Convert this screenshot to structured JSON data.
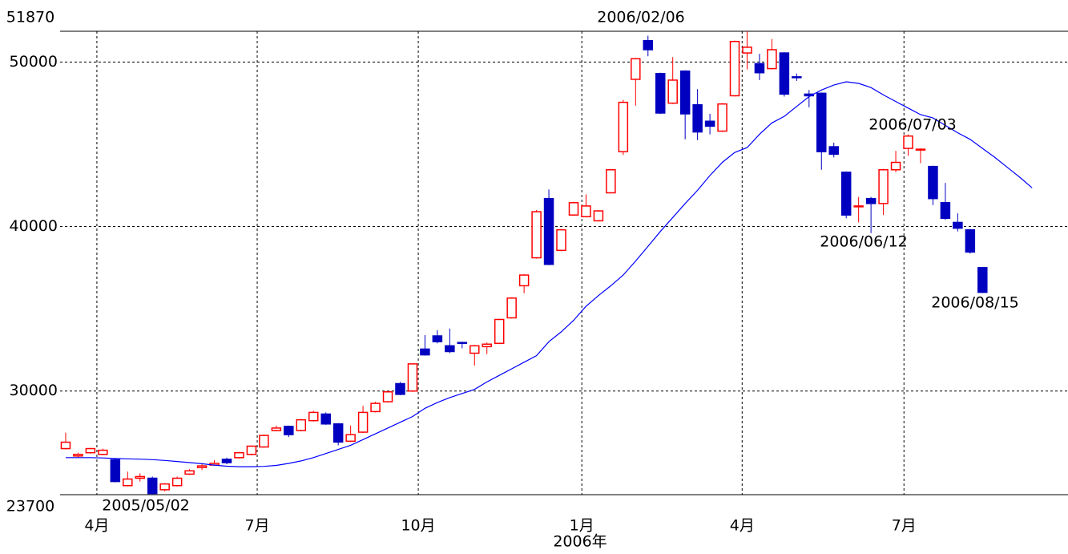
{
  "chart_data": {
    "type": "candlestick",
    "categories": [
      null,
      null,
      null,
      null,
      null,
      null,
      null,
      null,
      null,
      null,
      null,
      null,
      null,
      null,
      null,
      null,
      null,
      null,
      null,
      null,
      null,
      null,
      null,
      null,
      null,
      null,
      null,
      null,
      null,
      null,
      null,
      null,
      null,
      null,
      null,
      null,
      null,
      null,
      null,
      null,
      null,
      null,
      null,
      null,
      null,
      null,
      null,
      null,
      null,
      null,
      null,
      null,
      null,
      null,
      null,
      null,
      null,
      null,
      null,
      null,
      null,
      null,
      null,
      null,
      null,
      null,
      null,
      null,
      null,
      null,
      null,
      null,
      null,
      null,
      null
    ],
    "open": [
      26500,
      26050,
      26250,
      26150,
      25820,
      24250,
      24700,
      24700,
      24000,
      24250,
      24950,
      25350,
      25500,
      25850,
      25950,
      26150,
      26600,
      27600,
      27850,
      27600,
      28200,
      28600,
      28000,
      26950,
      27500,
      28750,
      29350,
      30450,
      30000,
      32550,
      33350,
      32750,
      32950,
      32300,
      32700,
      32900,
      34450,
      36400,
      38100,
      41700,
      38550,
      40700,
      40600,
      40350,
      42050,
      44550,
      48950,
      51300,
      49300,
      47500,
      49450,
      47400,
      46400,
      45800,
      47950,
      50550,
      49900,
      49600,
      50550,
      49100,
      48050,
      48100,
      44850,
      43300,
      41200,
      41700,
      41400,
      43450,
      44750,
      44650,
      43650,
      41450,
      40250,
      39800,
      37500
    ],
    "high": [
      27470,
      26250,
      26550,
      26500,
      25900,
      25100,
      25000,
      24800,
      24400,
      24800,
      25250,
      25600,
      25800,
      25950,
      26300,
      26700,
      27350,
      27900,
      27900,
      28300,
      28800,
      28700,
      28050,
      27900,
      29100,
      29350,
      30000,
      30550,
      31700,
      33400,
      33700,
      33800,
      33000,
      32800,
      32950,
      34400,
      35700,
      37100,
      41000,
      42250,
      39850,
      41500,
      41950,
      41000,
      43500,
      47700,
      50250,
      51600,
      49350,
      50300,
      49500,
      48350,
      46850,
      47500,
      51300,
      51870,
      50500,
      51400,
      50600,
      49300,
      48300,
      48150,
      45100,
      43350,
      41800,
      41800,
      43500,
      44600,
      45600,
      44750,
      43700,
      42650,
      40800,
      39850,
      37550
    ],
    "low": [
      26450,
      25950,
      26200,
      26100,
      24450,
      24200,
      24500,
      23700,
      23900,
      24200,
      24900,
      25200,
      25450,
      25550,
      25900,
      26100,
      26550,
      27550,
      27200,
      27550,
      28150,
      27950,
      26700,
      26900,
      27450,
      28700,
      29300,
      29750,
      29950,
      32150,
      32900,
      32300,
      32600,
      31550,
      32250,
      32850,
      34400,
      35950,
      38050,
      37650,
      38500,
      40650,
      40550,
      40300,
      42000,
      44350,
      47350,
      50350,
      46850,
      47450,
      45300,
      45250,
      45600,
      45750,
      47900,
      49550,
      48900,
      49550,
      47900,
      48850,
      47250,
      43450,
      44200,
      40500,
      40250,
      39600,
      40700,
      43300,
      44300,
      43850,
      41300,
      40400,
      39700,
      38350,
      35950
    ],
    "close": [
      26890,
      26150,
      26500,
      26400,
      24500,
      24650,
      24800,
      23770,
      24350,
      24700,
      25150,
      25450,
      25600,
      25650,
      26250,
      26650,
      27300,
      27750,
      27350,
      28250,
      28700,
      28000,
      26900,
      27350,
      28700,
      29250,
      29950,
      29800,
      31650,
      32200,
      33000,
      32400,
      32900,
      32750,
      32850,
      34350,
      35650,
      37050,
      40900,
      37700,
      39800,
      41450,
      41250,
      40950,
      43450,
      47550,
      50200,
      50750,
      46900,
      48900,
      46850,
      45750,
      46100,
      47450,
      51250,
      50900,
      49350,
      50750,
      48050,
      49050,
      47950,
      44550,
      44400,
      40700,
      41250,
      41400,
      43450,
      43900,
      45500,
      44700,
      41700,
      40500,
      39900,
      38450,
      36000
    ],
    "up_color": "#ff0000",
    "down_color": "#0000c0",
    "moving_averages": [
      {
        "color": "#0000ff",
        "values": [
          25950,
          25950,
          25950,
          25930,
          25900,
          25880,
          25860,
          25830,
          25780,
          25720,
          25650,
          25580,
          25500,
          25430,
          25400,
          25400,
          25420,
          25480,
          25600,
          25750,
          25950,
          26200,
          26450,
          26700,
          27050,
          27400,
          27750,
          28100,
          28450,
          28950,
          29300,
          29600,
          29850,
          30100,
          30550,
          30950,
          31350,
          31750,
          32150,
          33000,
          33600,
          34300,
          35150,
          35800,
          36400,
          37050,
          37900,
          38800,
          39700,
          40550,
          41400,
          42200,
          43100,
          43900,
          44500,
          44800,
          45600,
          46300,
          46700,
          47300,
          47900,
          48300,
          48600,
          48800,
          48700,
          48450,
          48000,
          47600,
          47200,
          46800,
          46600,
          46150,
          45700,
          45300,
          44750,
          44200,
          43600,
          43000,
          42350
        ],
        "values_trim": null
      },
      {
        "color": "#a0524d",
        "values": []
      }
    ],
    "ylim": [
      23700,
      51870
    ],
    "yticks": [
      30000,
      40000,
      50000
    ],
    "xlim": [
      -0.45,
      80.9
    ],
    "xticks": [
      {
        "value": 2.52,
        "label": "4月"
      },
      {
        "value": 15.46,
        "label": "7月"
      },
      {
        "value": 28.46,
        "label": "10月"
      },
      {
        "value": 41.66,
        "label": "1月"
      },
      {
        "value": 54.6,
        "label": "4月"
      },
      {
        "value": 67.66,
        "label": "7月"
      }
    ],
    "year_label": "2006年",
    "annotations": [
      "2005/05/02",
      "2006/02/06",
      "2006/06/12",
      "2006/07/03",
      "2006/08/15"
    ],
    "grid": true
  }
}
